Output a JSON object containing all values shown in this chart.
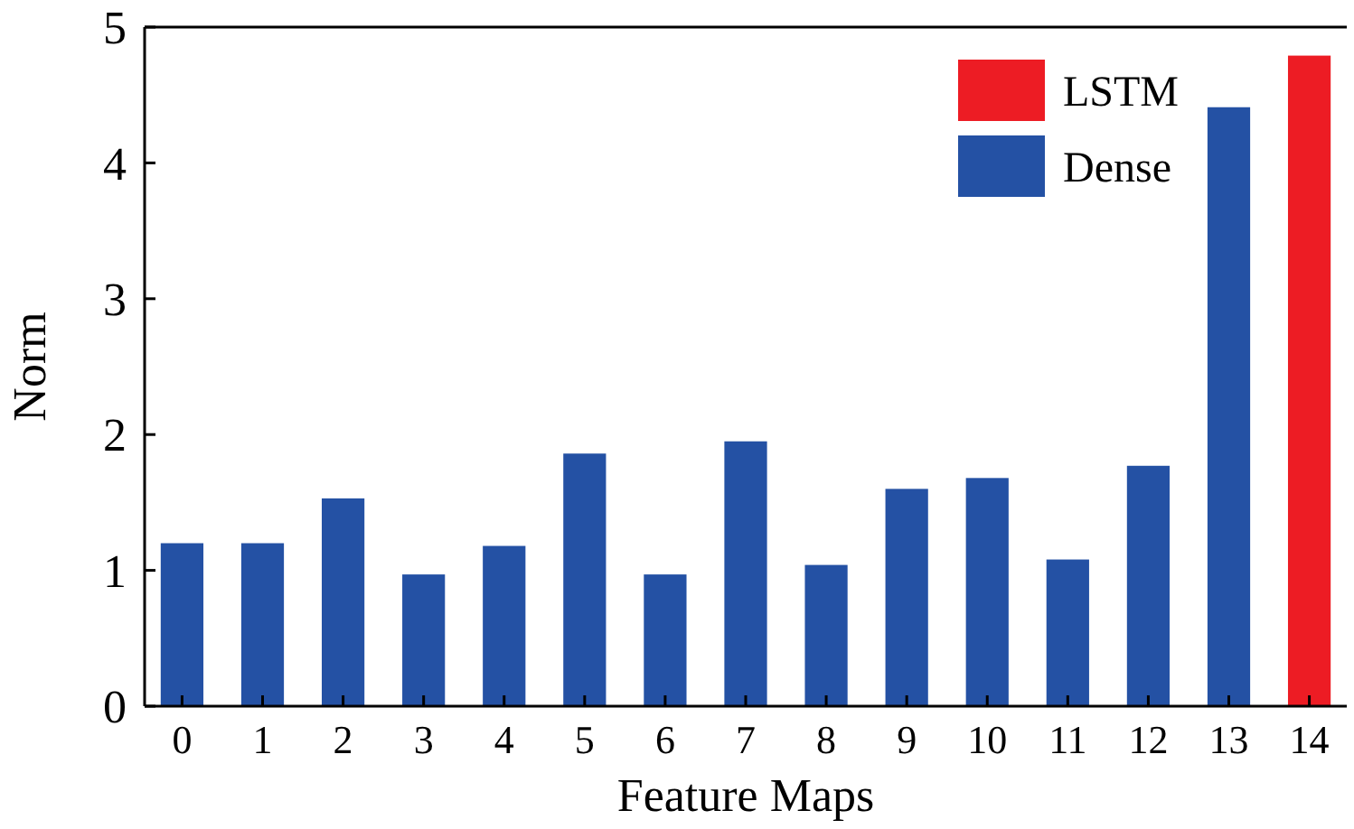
{
  "chart_data": {
    "type": "bar",
    "xlabel": "Feature Maps",
    "ylabel": "Norm",
    "categories": [
      "0",
      "1",
      "2",
      "3",
      "4",
      "5",
      "6",
      "7",
      "8",
      "9",
      "10",
      "11",
      "12",
      "13",
      "14"
    ],
    "series": [
      {
        "name": "LSTM",
        "color": "#ed1c24",
        "values": [
          null,
          null,
          null,
          null,
          null,
          null,
          null,
          null,
          null,
          null,
          null,
          null,
          null,
          null,
          4.79
        ]
      },
      {
        "name": "Dense",
        "color": "#2451a4",
        "values": [
          1.2,
          1.2,
          1.53,
          0.97,
          1.18,
          1.86,
          0.97,
          1.95,
          1.04,
          1.6,
          1.68,
          1.08,
          1.77,
          4.41,
          null
        ]
      }
    ],
    "ylim": [
      0,
      5
    ],
    "yticks": [
      0,
      1,
      2,
      3,
      4,
      5
    ],
    "legend": "top right"
  }
}
